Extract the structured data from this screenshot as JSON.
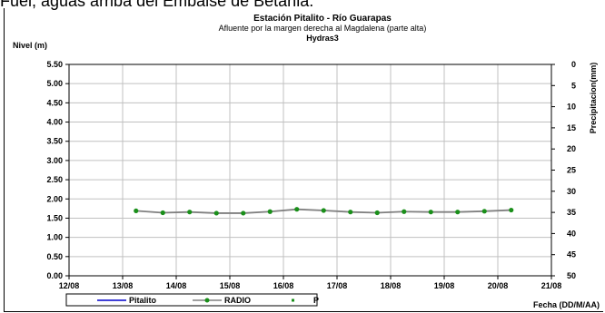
{
  "page": {
    "caption": "Fuel, aguas arriba del Embalse de Betania."
  },
  "chart_data": {
    "type": "line",
    "title": "Estación Pitalito  - Río Guarapas",
    "subtitle": "Afluente por la margen derecha al Magdalena (parte alta)",
    "subtitle2": "Hydras3",
    "ylabel": "Nivel (m)",
    "y2label": "Precipitacion(mm)",
    "xlabel": "Fecha (DD/M/AA)",
    "x_ticks": [
      "12/08",
      "13/08",
      "14/08",
      "15/08",
      "16/08",
      "17/08",
      "18/08",
      "19/08",
      "20/08",
      "21/08"
    ],
    "y_ticks": [
      "0.00",
      "0.50",
      "1.00",
      "1.50",
      "2.00",
      "2.50",
      "3.00",
      "3.50",
      "4.00",
      "4.50",
      "5.00",
      "5.50"
    ],
    "y2_ticks": [
      "0",
      "5",
      "10",
      "15",
      "20",
      "25",
      "30",
      "35",
      "40",
      "45",
      "50"
    ],
    "ylim": [
      0,
      5.5
    ],
    "y2lim": [
      0,
      50
    ],
    "y2_inverted": true,
    "xlim": [
      "12/08",
      "21/08"
    ],
    "grid": true,
    "legend_position": "bottom",
    "series": [
      {
        "name": "Pitalito",
        "color": "#0000cc",
        "style": "line",
        "x": [],
        "values": []
      },
      {
        "name": "RADIO",
        "color": "#808080",
        "marker_color": "#1a8f1a",
        "style": "line-marker",
        "x": [
          "13/08 06:00",
          "13/08 18:00",
          "14/08 06:00",
          "14/08 18:00",
          "15/08 06:00",
          "15/08 18:00",
          "16/08 06:00",
          "16/08 18:00",
          "17/08 06:00",
          "17/08 18:00",
          "18/08 06:00",
          "18/08 18:00",
          "19/08 06:00",
          "19/08 18:00",
          "20/08 06:00"
        ],
        "values": [
          1.69,
          1.64,
          1.66,
          1.63,
          1.63,
          1.67,
          1.73,
          1.7,
          1.66,
          1.64,
          1.67,
          1.66,
          1.66,
          1.68,
          1.71
        ]
      },
      {
        "name": "P",
        "color": "#1a8f1a",
        "style": "marker",
        "x": [],
        "values": []
      }
    ]
  }
}
